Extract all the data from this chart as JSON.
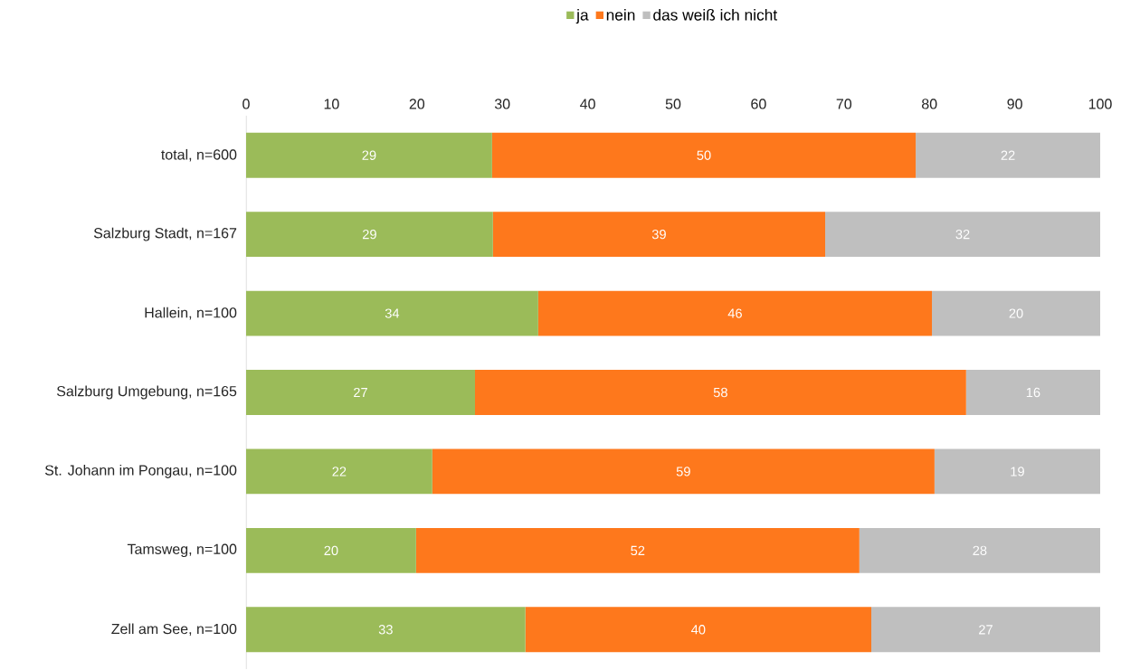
{
  "chart_data": {
    "type": "bar",
    "orientation": "horizontal",
    "stacked": true,
    "legend": "top",
    "grid": false,
    "categories": [
      "total, n=600",
      "Salzburg Stadt, n=167",
      "Hallein, n=100",
      "Salzburg Umgebung, n=165",
      "St. Johann im Pongau, n=100",
      "Tamsweg, n=100",
      "Zell am See, n=100"
    ],
    "xlim": [
      0,
      100
    ],
    "xticks": [
      0,
      10,
      20,
      30,
      40,
      50,
      60,
      70,
      80,
      90,
      100
    ],
    "series": [
      {
        "name": "ja",
        "color": "#9bbb59",
        "values": [
          28.8,
          28.9,
          34.2,
          26.8,
          21.8,
          19.9,
          32.7
        ],
        "value_labels": [
          "29",
          "29",
          "34",
          "27",
          "22",
          "20",
          "33"
        ]
      },
      {
        "name": "nein",
        "color": "#fe781c",
        "values": [
          49.6,
          38.9,
          46.1,
          57.5,
          58.8,
          51.9,
          40.5
        ],
        "value_labels": [
          "50",
          "39",
          "46",
          "58",
          "59",
          "52",
          "40"
        ]
      },
      {
        "name": "das weiß ich nicht",
        "color": "#bfbfbf",
        "values": [
          21.6,
          32.2,
          19.7,
          15.7,
          19.4,
          28.2,
          26.8
        ],
        "value_labels": [
          "22",
          "32",
          "20",
          "16",
          "19",
          "28",
          "27"
        ]
      }
    ]
  }
}
